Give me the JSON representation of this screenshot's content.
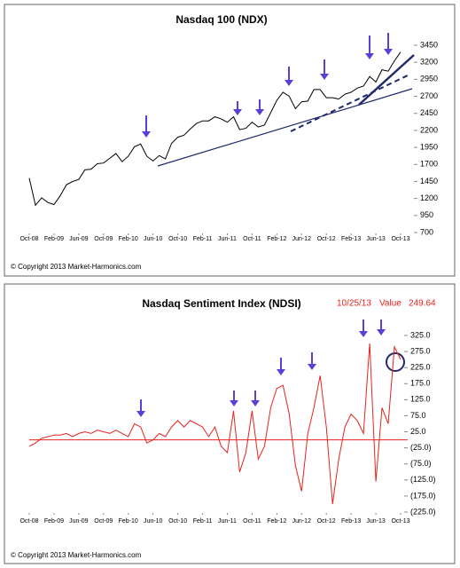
{
  "chart_data": [
    {
      "type": "line",
      "title": "Nasdaq 100 (NDX)",
      "copyright": "© Copyright 2013 Market-Harmonics.com",
      "x": [
        "2008-10",
        "2008-11",
        "2008-12",
        "2009-01",
        "2009-02",
        "2009-03",
        "2009-04",
        "2009-05",
        "2009-06",
        "2009-07",
        "2009-08",
        "2009-09",
        "2009-10",
        "2009-11",
        "2009-12",
        "2010-01",
        "2010-02",
        "2010-03",
        "2010-04",
        "2010-05",
        "2010-06",
        "2010-07",
        "2010-08",
        "2010-09",
        "2010-10",
        "2010-11",
        "2010-12",
        "2011-01",
        "2011-02",
        "2011-03",
        "2011-04",
        "2011-05",
        "2011-06",
        "2011-07",
        "2011-08",
        "2011-09",
        "2011-10",
        "2011-11",
        "2011-12",
        "2012-01",
        "2012-02",
        "2012-03",
        "2012-04",
        "2012-05",
        "2012-06",
        "2012-07",
        "2012-08",
        "2012-09",
        "2012-10",
        "2012-11",
        "2012-12",
        "2013-01",
        "2013-02",
        "2013-03",
        "2013-04",
        "2013-05",
        "2013-06",
        "2013-07",
        "2013-08",
        "2013-09",
        "2013-10"
      ],
      "series": [
        {
          "name": "NDX",
          "color": "#000000",
          "values": [
            1500,
            1100,
            1210,
            1140,
            1110,
            1240,
            1400,
            1450,
            1480,
            1620,
            1630,
            1710,
            1720,
            1790,
            1860,
            1740,
            1820,
            1960,
            2000,
            1820,
            1750,
            1830,
            1780,
            2010,
            2100,
            2130,
            2220,
            2300,
            2340,
            2340,
            2400,
            2370,
            2320,
            2400,
            2210,
            2230,
            2320,
            2250,
            2280,
            2460,
            2640,
            2760,
            2700,
            2520,
            2620,
            2630,
            2800,
            2800,
            2680,
            2680,
            2660,
            2730,
            2760,
            2820,
            2850,
            2990,
            2910,
            3090,
            3070,
            3220,
            3350
          ]
        }
      ],
      "ylim": [
        700,
        3450
      ],
      "yticks": [
        700,
        950,
        1200,
        1450,
        1700,
        1950,
        2200,
        2450,
        2700,
        2950,
        3200,
        3450
      ],
      "xticks": [
        {
          "value": "2008-10",
          "label": "Oct-08"
        },
        {
          "value": "2009-02",
          "label": "Feb-09"
        },
        {
          "value": "2009-06",
          "label": "Jun-09"
        },
        {
          "value": "2009-10",
          "label": "Oct-09"
        },
        {
          "value": "2010-02",
          "label": "Feb-10"
        },
        {
          "value": "2010-06",
          "label": "Jun-10"
        },
        {
          "value": "2010-10",
          "label": "Oct-10"
        },
        {
          "value": "2011-02",
          "label": "Feb-11"
        },
        {
          "value": "2011-06",
          "label": "Jun-11"
        },
        {
          "value": "2011-10",
          "label": "Oct-11"
        },
        {
          "value": "2012-02",
          "label": "Feb-12"
        },
        {
          "value": "2012-06",
          "label": "Jun-12"
        },
        {
          "value": "2012-10",
          "label": "Oct-12"
        },
        {
          "value": "2013-02",
          "label": "Feb-13"
        },
        {
          "value": "2013-06",
          "label": "Jun-13"
        },
        {
          "value": "2013-10",
          "label": "Oct-13"
        }
      ]
    },
    {
      "type": "line",
      "title": "Nasdaq  Sentiment Index (NDSI)",
      "copyright": "© Copyright 2013 Market-Harmonics.com",
      "last_date": "10/25/13",
      "last_label": "Value",
      "last_value": 249.64,
      "reference_line": 0,
      "x": [
        "2008-10",
        "2008-11",
        "2008-12",
        "2009-01",
        "2009-02",
        "2009-03",
        "2009-04",
        "2009-05",
        "2009-06",
        "2009-07",
        "2009-08",
        "2009-09",
        "2009-10",
        "2009-11",
        "2009-12",
        "2010-01",
        "2010-02",
        "2010-03",
        "2010-04",
        "2010-05",
        "2010-06",
        "2010-07",
        "2010-08",
        "2010-09",
        "2010-10",
        "2010-11",
        "2010-12",
        "2011-01",
        "2011-02",
        "2011-03",
        "2011-04",
        "2011-05",
        "2011-06",
        "2011-07",
        "2011-08",
        "2011-09",
        "2011-10",
        "2011-11",
        "2011-12",
        "2012-01",
        "2012-02",
        "2012-03",
        "2012-04",
        "2012-05",
        "2012-06",
        "2012-07",
        "2012-08",
        "2012-09",
        "2012-10",
        "2012-11",
        "2012-12",
        "2013-01",
        "2013-02",
        "2013-03",
        "2013-04",
        "2013-05",
        "2013-06",
        "2013-07",
        "2013-08",
        "2013-09",
        "2013-10"
      ],
      "series": [
        {
          "name": "NDSI",
          "color": "#e8221c",
          "values": [
            -20,
            -10,
            5,
            10,
            15,
            15,
            20,
            10,
            20,
            25,
            20,
            30,
            25,
            20,
            30,
            20,
            10,
            50,
            40,
            -10,
            0,
            20,
            10,
            40,
            60,
            40,
            60,
            50,
            40,
            10,
            40,
            -20,
            -40,
            90,
            -100,
            -40,
            90,
            -60,
            -20,
            100,
            160,
            170,
            80,
            -80,
            -160,
            20,
            100,
            200,
            40,
            -200,
            -60,
            40,
            80,
            60,
            20,
            300,
            -130,
            100,
            50,
            290,
            250
          ]
        }
      ],
      "ylim": [
        -225,
        325
      ],
      "yticks": [
        {
          "value": -225,
          "label": "(225.0)"
        },
        {
          "value": -175,
          "label": "(175.0)"
        },
        {
          "value": -125,
          "label": "(125.0)"
        },
        {
          "value": -75,
          "label": "(75.0)"
        },
        {
          "value": -25,
          "label": "(25.0)"
        },
        {
          "value": 25,
          "label": "25.0"
        },
        {
          "value": 75,
          "label": "75.0"
        },
        {
          "value": 125,
          "label": "125.0"
        },
        {
          "value": 175,
          "label": "175.0"
        },
        {
          "value": 225,
          "label": "225.0"
        },
        {
          "value": 275,
          "label": "275.0"
        },
        {
          "value": 325,
          "label": "325.0"
        }
      ],
      "xticks": [
        {
          "value": "2008-10",
          "label": "Oct-08"
        },
        {
          "value": "2009-02",
          "label": "Feb-09"
        },
        {
          "value": "2009-06",
          "label": "Jun-09"
        },
        {
          "value": "2009-10",
          "label": "Oct-09"
        },
        {
          "value": "2010-02",
          "label": "Feb-10"
        },
        {
          "value": "2010-06",
          "label": "Jun-10"
        },
        {
          "value": "2010-10",
          "label": "Oct-10"
        },
        {
          "value": "2011-02",
          "label": "Feb-11"
        },
        {
          "value": "2011-06",
          "label": "Jun-11"
        },
        {
          "value": "2011-10",
          "label": "Oct-11"
        },
        {
          "value": "2012-02",
          "label": "Feb-12"
        },
        {
          "value": "2012-06",
          "label": "Jun-12"
        },
        {
          "value": "2012-10",
          "label": "Oct-12"
        },
        {
          "value": "2013-02",
          "label": "Feb-13"
        },
        {
          "value": "2013-06",
          "label": "Jun-13"
        },
        {
          "value": "2013-10",
          "label": "Oct-13"
        }
      ]
    }
  ]
}
